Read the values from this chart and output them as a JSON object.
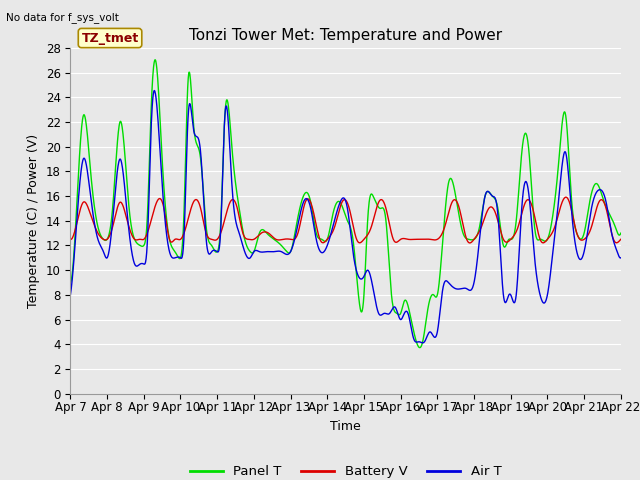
{
  "title": "Tonzi Tower Met: Temperature and Power",
  "xlabel": "Time",
  "ylabel": "Temperature (C) / Power (V)",
  "top_left_text": "No data for f_sys_volt",
  "annotation_box": "TZ_tmet",
  "ylim": [
    0,
    28
  ],
  "yticks": [
    0,
    2,
    4,
    6,
    8,
    10,
    12,
    14,
    16,
    18,
    20,
    22,
    24,
    26,
    28
  ],
  "xtick_labels": [
    "Apr 7",
    "Apr 8",
    "Apr 9",
    "Apr 10",
    "Apr 11",
    "Apr 12",
    "Apr 13",
    "Apr 14",
    "Apr 15",
    "Apr 16",
    "Apr 17",
    "Apr 18",
    "Apr 19",
    "Apr 20",
    "Apr 21",
    "Apr 22"
  ],
  "legend_entries": [
    "Panel T",
    "Battery V",
    "Air T"
  ],
  "legend_colors": [
    "#00dd00",
    "#dd0000",
    "#0000dd"
  ],
  "background_color": "#e8e8e8",
  "plot_bg_color": "#e8e8e8",
  "grid_color": "#ffffff",
  "title_fontsize": 11,
  "axis_label_fontsize": 9,
  "tick_fontsize": 8.5
}
